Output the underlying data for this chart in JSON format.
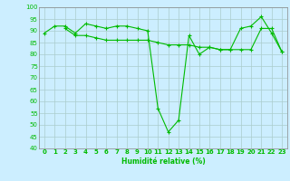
{
  "series1": [
    89,
    92,
    92,
    89,
    93,
    92,
    91,
    92,
    92,
    91,
    90,
    57,
    47,
    52,
    88,
    80,
    83,
    82,
    82,
    91,
    92,
    96,
    89,
    81
  ],
  "series2": [
    null,
    null,
    91,
    88,
    88,
    87,
    86,
    86,
    86,
    86,
    86,
    85,
    84,
    84,
    84,
    83,
    83,
    82,
    82,
    82,
    82,
    91,
    91,
    81
  ],
  "x": [
    0,
    1,
    2,
    3,
    4,
    5,
    6,
    7,
    8,
    9,
    10,
    11,
    12,
    13,
    14,
    15,
    16,
    17,
    18,
    19,
    20,
    21,
    22,
    23
  ],
  "xlabel": "Humidité relative (%)",
  "ylim": [
    40,
    100
  ],
  "xlim": [
    -0.5,
    23.5
  ],
  "yticks": [
    40,
    45,
    50,
    55,
    60,
    65,
    70,
    75,
    80,
    85,
    90,
    95,
    100
  ],
  "xticks": [
    0,
    1,
    2,
    3,
    4,
    5,
    6,
    7,
    8,
    9,
    10,
    11,
    12,
    13,
    14,
    15,
    16,
    17,
    18,
    19,
    20,
    21,
    22,
    23
  ],
  "line_color": "#00bb00",
  "bg_color": "#cceeff",
  "grid_color": "#aacccc",
  "marker": "+",
  "marker_size": 3,
  "linewidth": 0.8,
  "tick_fontsize": 5.0,
  "xlabel_fontsize": 5.5
}
